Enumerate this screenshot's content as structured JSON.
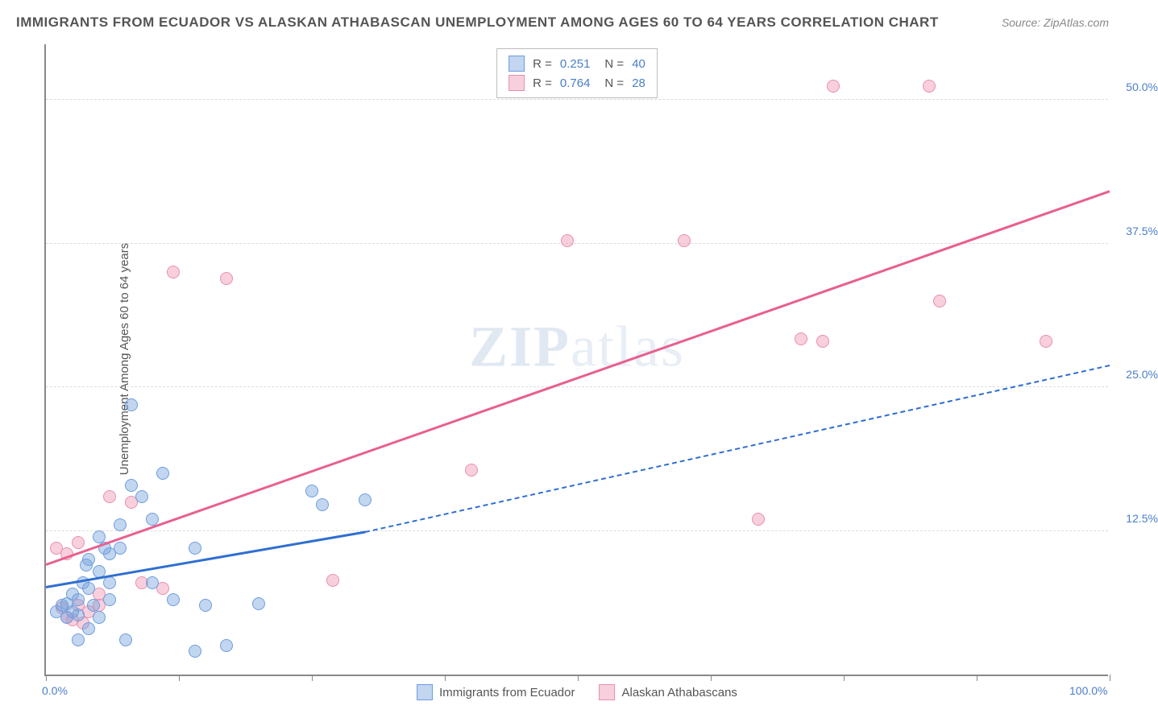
{
  "title": "IMMIGRANTS FROM ECUADOR VS ALASKAN ATHABASCAN UNEMPLOYMENT AMONG AGES 60 TO 64 YEARS CORRELATION CHART",
  "source": "Source: ZipAtlas.com",
  "y_axis_label": "Unemployment Among Ages 60 to 64 years",
  "watermark_a": "ZIP",
  "watermark_b": "atlas",
  "chart": {
    "type": "scatter",
    "xlim": [
      0,
      100
    ],
    "ylim": [
      0,
      55
    ],
    "x_ticks": [
      0,
      12.5,
      25,
      37.5,
      50,
      62.5,
      75,
      87.5,
      100
    ],
    "x_tick_labels": [
      "0.0%",
      "",
      "",
      "",
      "",
      "",
      "",
      "",
      "100.0%"
    ],
    "y_grid": [
      12.5,
      25,
      37.5,
      50
    ],
    "y_tick_labels": [
      "12.5%",
      "25.0%",
      "37.5%",
      "50.0%"
    ],
    "background_color": "#ffffff",
    "grid_color": "#dddddd",
    "axis_color": "#888888",
    "tick_label_color": "#4a7ec9",
    "marker_radius": 8,
    "marker_stroke_width": 1.5,
    "line_width": 2.5
  },
  "series": {
    "blue": {
      "label": "Immigrants from Ecuador",
      "fill": "rgba(120, 165, 220, 0.45)",
      "stroke": "#6d9de0",
      "line_color": "#2f6fd0",
      "R": "0.251",
      "N": "40",
      "trend": {
        "x1": 0,
        "y1": 7.5,
        "x2": 30,
        "y2": 12.3,
        "solid": true
      },
      "trend_ext": {
        "x1": 30,
        "y1": 12.3,
        "x2": 100,
        "y2": 26.8,
        "solid": false
      },
      "points": [
        [
          1,
          5.5
        ],
        [
          1.5,
          6
        ],
        [
          2,
          6.2
        ],
        [
          2,
          5
        ],
        [
          2.5,
          7
        ],
        [
          3,
          6.5
        ],
        [
          3,
          5.2
        ],
        [
          3.5,
          8
        ],
        [
          4,
          7.5
        ],
        [
          4,
          10
        ],
        [
          4.5,
          6
        ],
        [
          5,
          9
        ],
        [
          5,
          12
        ],
        [
          5.5,
          11
        ],
        [
          6,
          10.5
        ],
        [
          6,
          8
        ],
        [
          7,
          13
        ],
        [
          7,
          11
        ],
        [
          8,
          16.5
        ],
        [
          8,
          23.5
        ],
        [
          9,
          15.5
        ],
        [
          10,
          13.5
        ],
        [
          10,
          8
        ],
        [
          12,
          6.5
        ],
        [
          14,
          11
        ],
        [
          14,
          2
        ],
        [
          15,
          6
        ],
        [
          17,
          2.5
        ],
        [
          20,
          6.2
        ],
        [
          25,
          16
        ],
        [
          26,
          14.8
        ],
        [
          30,
          15.2
        ],
        [
          3,
          3
        ],
        [
          4,
          4
        ],
        [
          5,
          5
        ],
        [
          6,
          6.5
        ],
        [
          2.5,
          5.5
        ],
        [
          3.8,
          9.5
        ],
        [
          11,
          17.5
        ],
        [
          7.5,
          3
        ]
      ]
    },
    "pink": {
      "label": "Alaskan Athabascans",
      "fill": "rgba(240, 150, 180, 0.45)",
      "stroke": "#e88fb0",
      "line_color": "#e85f8f",
      "R": "0.764",
      "N": "28",
      "trend": {
        "x1": 0,
        "y1": 9.5,
        "x2": 100,
        "y2": 42.0,
        "solid": true
      },
      "points": [
        [
          1,
          11
        ],
        [
          2,
          10.5
        ],
        [
          2,
          5
        ],
        [
          3,
          6
        ],
        [
          3,
          11.5
        ],
        [
          4,
          5.5
        ],
        [
          5,
          7
        ],
        [
          6,
          15.5
        ],
        [
          8,
          15
        ],
        [
          9,
          8
        ],
        [
          11,
          7.5
        ],
        [
          12,
          35
        ],
        [
          17,
          34.5
        ],
        [
          27,
          8.2
        ],
        [
          40,
          17.8
        ],
        [
          49,
          37.8
        ],
        [
          60,
          37.8
        ],
        [
          67,
          13.5
        ],
        [
          71,
          29.2
        ],
        [
          73,
          29
        ],
        [
          74,
          51.2
        ],
        [
          83,
          51.2
        ],
        [
          84,
          32.5
        ],
        [
          94,
          29
        ],
        [
          3.5,
          4.5
        ],
        [
          5,
          6
        ],
        [
          1.5,
          5.8
        ],
        [
          2.5,
          4.8
        ]
      ]
    }
  },
  "legend_top": {
    "R_label": "R  =",
    "N_label": "N  ="
  }
}
